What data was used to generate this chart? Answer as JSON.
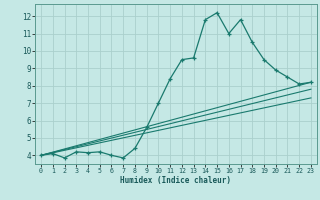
{
  "title": "",
  "xlabel": "Humidex (Indice chaleur)",
  "bg_color": "#c5e8e5",
  "line_color": "#1a7a6e",
  "grid_color": "#aad0cc",
  "xlim": [
    -0.5,
    23.5
  ],
  "ylim": [
    3.5,
    12.7
  ],
  "xticks": [
    0,
    1,
    2,
    3,
    4,
    5,
    6,
    7,
    8,
    9,
    10,
    11,
    12,
    13,
    14,
    15,
    16,
    17,
    18,
    19,
    20,
    21,
    22,
    23
  ],
  "yticks": [
    4,
    5,
    6,
    7,
    8,
    9,
    10,
    11,
    12
  ],
  "main_line": {
    "x": [
      0,
      1,
      2,
      3,
      4,
      5,
      6,
      7,
      8,
      9,
      10,
      11,
      12,
      13,
      14,
      15,
      16,
      17,
      18,
      19,
      20,
      21,
      22,
      23
    ],
    "y": [
      4.0,
      4.1,
      3.85,
      4.2,
      4.15,
      4.2,
      4.0,
      3.85,
      4.4,
      5.6,
      7.0,
      8.4,
      9.5,
      9.6,
      11.8,
      12.2,
      11.0,
      11.8,
      10.5,
      9.5,
      8.9,
      8.5,
      8.1,
      8.2
    ]
  },
  "trend_line1": {
    "x": [
      0,
      23
    ],
    "y": [
      4.0,
      8.2
    ]
  },
  "trend_line2": {
    "x": [
      0,
      23
    ],
    "y": [
      4.0,
      7.8
    ]
  },
  "trend_line3": {
    "x": [
      0,
      23
    ],
    "y": [
      4.0,
      7.3
    ]
  }
}
